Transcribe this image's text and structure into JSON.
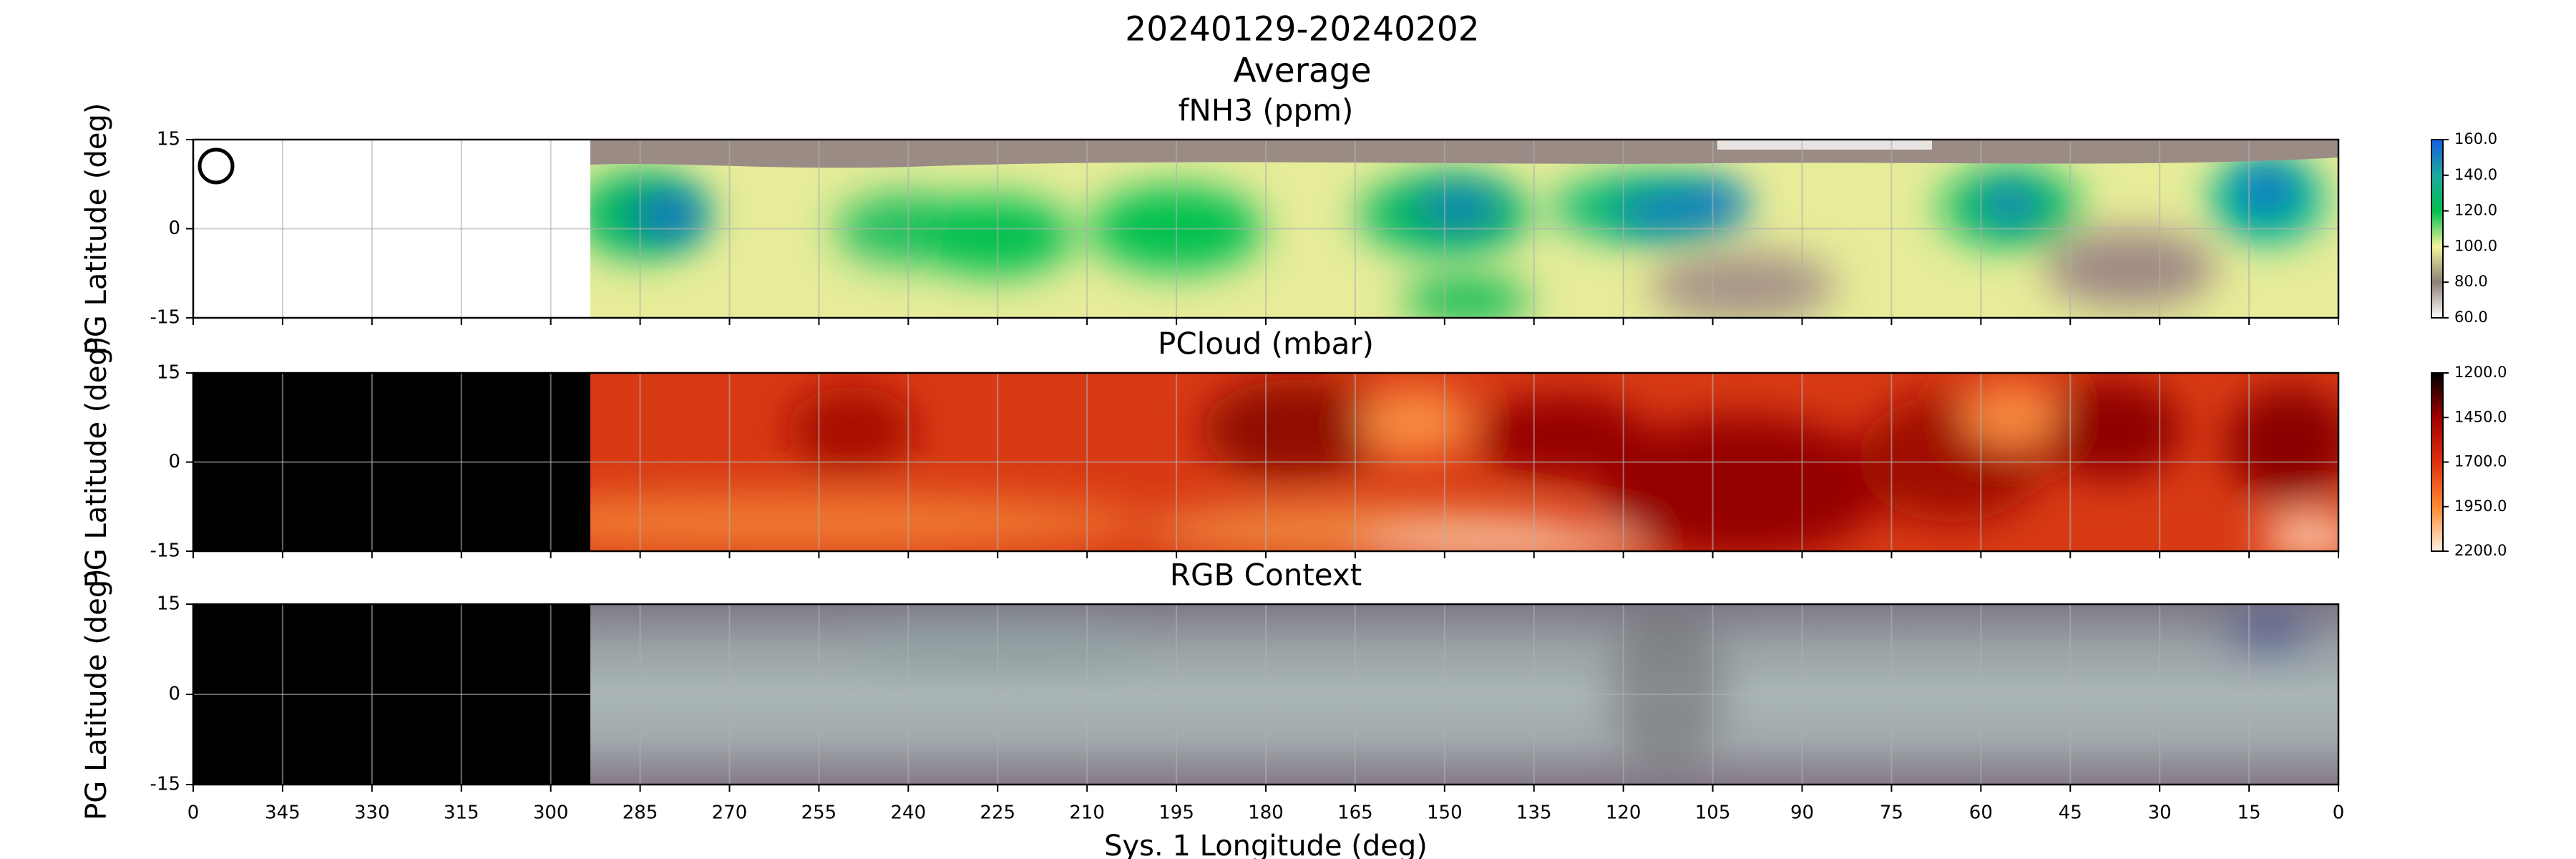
{
  "title": "20240129-20240202",
  "subtitle": "Average",
  "chart_data": [
    {
      "type": "heatmap",
      "title": "fNH3 (ppm)",
      "ylabel": "PG Latitude (deg)",
      "ylim": [
        -15,
        15
      ],
      "yticks": [
        -15,
        0,
        15
      ],
      "grid": true,
      "colorbar": {
        "lim": [
          60,
          160
        ],
        "ticks": [
          {
            "value": 60,
            "label": "60.0"
          },
          {
            "value": 80,
            "label": "80.0"
          },
          {
            "value": 100,
            "label": "100.0"
          },
          {
            "value": 120,
            "label": "120.0"
          },
          {
            "value": 140,
            "label": "140.0"
          },
          {
            "value": 160,
            "label": "160.0"
          }
        ],
        "colors": [
          "#ffffff",
          "#8f7f78",
          "#f4f29a",
          "#00c050",
          "#20a8a0",
          "#1060e0"
        ]
      }
    },
    {
      "type": "heatmap",
      "title": "PCloud (mbar)",
      "ylabel": "PG Latitude (deg)",
      "ylim": [
        -15,
        15
      ],
      "yticks": [
        -15,
        0,
        15
      ],
      "grid": true,
      "colorbar": {
        "lim": [
          2200,
          1200
        ],
        "ticks": [
          {
            "value": 2200,
            "label": "2200.0"
          },
          {
            "value": 1950,
            "label": "1950.0"
          },
          {
            "value": 1700,
            "label": "1700.0"
          },
          {
            "value": 1450,
            "label": "1450.0"
          },
          {
            "value": 1200,
            "label": "1200.0"
          }
        ],
        "colors": [
          "#fff0e0",
          "#ff8a30",
          "#e03010",
          "#a00000",
          "#000000"
        ]
      }
    },
    {
      "type": "heatmap",
      "title": "RGB Context",
      "ylabel": "PG Latitude (deg)",
      "xlabel": "Sys. 1 Longitude (deg)",
      "ylim": [
        -15,
        15
      ],
      "yticks": [
        -15,
        0,
        15
      ],
      "grid": true,
      "xlim": [
        360,
        0
      ],
      "xticks": [
        {
          "value": 360,
          "label": "0"
        },
        345,
        330,
        315,
        300,
        285,
        270,
        255,
        240,
        225,
        210,
        195,
        180,
        165,
        150,
        135,
        120,
        105,
        90,
        75,
        60,
        45,
        30,
        15,
        0
      ]
    }
  ]
}
